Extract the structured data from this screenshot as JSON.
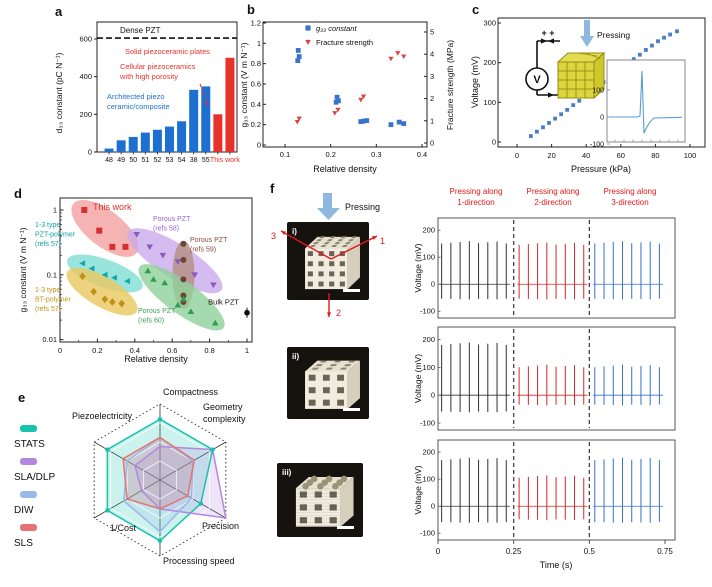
{
  "panels": {
    "a": "a",
    "b": "b",
    "c": "c",
    "d": "d",
    "e": "e",
    "f": "f"
  },
  "chart_data": [
    {
      "panel": "a",
      "type": "bar",
      "categories": [
        "48",
        "49",
        "50",
        "51",
        "52",
        "53",
        "54",
        "38",
        "55",
        "",
        ""
      ],
      "values": [
        18,
        62,
        80,
        103,
        118,
        135,
        163,
        330,
        348,
        200,
        500
      ],
      "bar_colors": [
        "#1e6fd2",
        "#1e6fd2",
        "#1e6fd2",
        "#1e6fd2",
        "#1e6fd2",
        "#1e6fd2",
        "#1e6fd2",
        "#1e6fd2",
        "#1e6fd2",
        "#e8312a",
        "#e8312a"
      ],
      "ylabel": "d₃₃ constant (pC N⁻¹)",
      "ylim": [
        0,
        690
      ],
      "yticks": [
        0,
        200,
        400,
        600
      ],
      "ref_line": {
        "value": 605,
        "label": "Dense PZT",
        "color": "#111111"
      },
      "group_label": {
        "text": "This work",
        "color": "#e8312a"
      },
      "annotations": [
        {
          "lines": [
            "Solid piezoceramic plates"
          ],
          "color": "#e8312a"
        },
        {
          "lines": [
            "Cellular piezoceramics",
            "with high porosity"
          ],
          "color": "#e8312a"
        },
        {
          "lines": [
            "Architected piezo",
            "ceramic/composite"
          ],
          "color": "#1e6fd2"
        }
      ]
    },
    {
      "panel": "b",
      "type": "scatter_dual",
      "xlabel": "Relative density",
      "xlim": [
        0.052,
        0.411
      ],
      "xticks": [
        0.1,
        0.2,
        0.3,
        0.4
      ],
      "left_axis": {
        "label": "g₃₃ constant (V m N⁻¹)",
        "ticks": [
          0,
          0.2,
          0.4,
          0.6,
          0.8,
          1,
          1.2
        ],
        "range": [
          0,
          1.2
        ]
      },
      "right_axis": {
        "label": "Fracture strength (MPa)",
        "ticks": [
          0,
          1,
          2,
          3,
          4,
          5
        ],
        "range": [
          0,
          5
        ]
      },
      "series": [
        {
          "name": "g₃₃ constant",
          "axis": "left",
          "marker": "square",
          "color": "#3a74c8",
          "points": [
            [
              0.128,
              0.83
            ],
            [
              0.131,
              0.87
            ],
            [
              0.129,
              0.93
            ],
            [
              0.212,
              0.42
            ],
            [
              0.217,
              0.435
            ],
            [
              0.214,
              0.47
            ],
            [
              0.266,
              0.23
            ],
            [
              0.272,
              0.235
            ],
            [
              0.279,
              0.24
            ],
            [
              0.332,
              0.2
            ],
            [
              0.35,
              0.225
            ],
            [
              0.36,
              0.21
            ]
          ]
        },
        {
          "name": "Fracture strength",
          "axis": "right",
          "marker": "triangle_down",
          "color": "#d84545",
          "points": [
            [
              0.127,
              0.95
            ],
            [
              0.131,
              1.1
            ],
            [
              0.209,
              1.35
            ],
            [
              0.216,
              1.5
            ],
            [
              0.266,
              1.95
            ],
            [
              0.272,
              2.1
            ],
            [
              0.332,
              3.8
            ],
            [
              0.347,
              4.05
            ],
            [
              0.36,
              3.9
            ]
          ]
        }
      ]
    },
    {
      "panel": "c",
      "type": "scatter_line",
      "xlabel": "Pressure (kPa)",
      "xticks": [
        0,
        20,
        40,
        60,
        80,
        100
      ],
      "ylabel": "Voltage (mV)",
      "yticks": [
        0,
        100,
        200,
        300
      ],
      "marker_color": "#4a7cc8",
      "points": [
        [
          8,
          15
        ],
        [
          11.5,
          26
        ],
        [
          15,
          37
        ],
        [
          18.5,
          48
        ],
        [
          22,
          59
        ],
        [
          25.5,
          70
        ],
        [
          29,
          81
        ],
        [
          32.5,
          93
        ],
        [
          36,
          104
        ],
        [
          39.5,
          116
        ],
        [
          43,
          127
        ],
        [
          46.5,
          139
        ],
        [
          50,
          151
        ],
        [
          53.5,
          162
        ],
        [
          57,
          174
        ],
        [
          60.5,
          186
        ],
        [
          64,
          197
        ],
        [
          67.5,
          209
        ],
        [
          71,
          220
        ],
        [
          74.5,
          232
        ],
        [
          78,
          243
        ],
        [
          81.5,
          254
        ],
        [
          85,
          263
        ],
        [
          88.5,
          271
        ],
        [
          92.5,
          279
        ]
      ],
      "circuit": {
        "voltmeter": "V",
        "plus": "+  +",
        "pressing": "Pressing"
      },
      "inset": {
        "yticks": [
          100,
          0,
          -100
        ],
        "peak_mV": 170,
        "undershoot_mV": -60,
        "line_color": "#5b9bd5"
      }
    },
    {
      "panel": "d",
      "type": "scatter_log",
      "xlabel": "Relative density",
      "xticks": [
        0,
        0.2,
        0.4,
        0.6,
        0.8,
        1
      ],
      "ylabel": "g₃₃ constant (V m N⁻¹)",
      "yticks": [
        0.01,
        0.1,
        1
      ],
      "groups": [
        {
          "name": "This work",
          "label_lines": [
            "This work"
          ],
          "label_color": "#e03030",
          "marker": "square",
          "marker_color": "#d43030",
          "ellipse_fill": "#f2a0a0",
          "points": [
            [
              0.13,
              1.0
            ],
            [
              0.21,
              0.48
            ],
            [
              0.28,
              0.27
            ],
            [
              0.35,
              0.27
            ]
          ],
          "ellipse": {
            "cx": 0.24,
            "cy": 0.52,
            "rmaj": 40,
            "rmin": 18,
            "angle": 38
          },
          "label_xy": [
            83,
            25
          ],
          "label_size": 9
        },
        {
          "name": "1-3 type PZT-polymer",
          "label_lines": [
            "1-3 type",
            "PZT-polymer",
            "(refs 57)"
          ],
          "label_color": "#12a0a0",
          "marker": "triangle_left",
          "marker_color": "#12a8a8",
          "ellipse_fill": "#7fded6",
          "points": [
            [
              0.12,
              0.15
            ],
            [
              0.17,
              0.125
            ],
            [
              0.24,
              0.1
            ],
            [
              0.29,
              0.09
            ],
            [
              0.36,
              0.08
            ]
          ],
          "ellipse": {
            "cx": 0.24,
            "cy": 0.105,
            "rmaj": 40,
            "rmin": 14,
            "angle": 20
          },
          "label_xy": [
            25,
            42
          ],
          "label_size": 7
        },
        {
          "name": "1-3 type BT-polymer",
          "label_lines": [
            "1-3 type",
            "BT-polymer",
            "(refs 57)"
          ],
          "label_color": "#bf9210",
          "marker": "diamond",
          "marker_color": "#c09018",
          "ellipse_fill": "#eac85e",
          "points": [
            [
              0.12,
              0.095
            ],
            [
              0.18,
              0.055
            ],
            [
              0.24,
              0.042
            ],
            [
              0.28,
              0.038
            ],
            [
              0.33,
              0.036
            ]
          ],
          "ellipse": {
            "cx": 0.225,
            "cy": 0.055,
            "rmaj": 40,
            "rmin": 15,
            "angle": 30
          },
          "label_xy": [
            25,
            107
          ],
          "label_size": 7
        },
        {
          "name": "Porous PZT (refs 58)",
          "label_lines": [
            "Porous PZT",
            "(refs 58)"
          ],
          "label_color": "#9a63cf",
          "marker": "triangle_down",
          "marker_color": "#8a5ac0",
          "ellipse_fill": "#c9aaec",
          "points": [
            [
              0.41,
              0.42
            ],
            [
              0.48,
              0.27
            ],
            [
              0.55,
              0.2
            ],
            [
              0.63,
              0.16
            ],
            [
              0.72,
              0.1
            ],
            [
              0.82,
              0.07
            ]
          ],
          "ellipse": {
            "cx": 0.615,
            "cy": 0.165,
            "rmaj": 55,
            "rmin": 17,
            "angle": 32
          },
          "label_xy": [
            143,
            36
          ],
          "label_size": 7
        },
        {
          "name": "Porous PZT (refs 59)",
          "label_lines": [
            "Porous PZT",
            "(refs 59)"
          ],
          "label_color": "#8a4a3a",
          "marker": "circle",
          "marker_color": "#6e4438",
          "ellipse_fill": "#b58e82",
          "points": [
            [
              0.66,
              0.3
            ],
            [
              0.66,
              0.17
            ],
            [
              0.66,
              0.085
            ],
            [
              0.66,
              0.048
            ],
            [
              0.66,
              0.038
            ]
          ],
          "ellipse": {
            "cx": 0.66,
            "cy": 0.1,
            "rmaj": 34,
            "rmin": 11,
            "angle": 90
          },
          "label_xy": [
            180,
            57
          ],
          "label_size": 7
        },
        {
          "name": "Porous PZT (refs 60)",
          "label_lines": [
            "Porous PZT",
            "(refs 60)"
          ],
          "label_color": "#3f9e56",
          "marker": "triangle_up",
          "marker_color": "#2e9e4e",
          "ellipse_fill": "#8fcf9a",
          "points": [
            [
              0.47,
              0.115
            ],
            [
              0.5,
              0.085
            ],
            [
              0.56,
              0.075
            ],
            [
              0.63,
              0.034
            ],
            [
              0.66,
              0.042
            ],
            [
              0.7,
              0.027
            ],
            [
              0.83,
              0.018
            ]
          ],
          "ellipse": {
            "cx": 0.65,
            "cy": 0.045,
            "rmaj": 52,
            "rmin": 16,
            "angle": 36
          },
          "label_xy": [
            128,
            128
          ],
          "label_size": 7
        }
      ],
      "bulk": {
        "label": "Bulk PZT",
        "point": [
          1.0,
          0.026
        ],
        "color": "#111111"
      }
    },
    {
      "panel": "e",
      "type": "radar",
      "axes": [
        "Compactness",
        "Geometry complexity",
        "Precision",
        "Processing speed",
        "1/Cost",
        "Piezoelectricity"
      ],
      "series": [
        {
          "name": "STATS",
          "color": "#17c3ad",
          "values": [
            0.8,
            0.8,
            0.62,
            0.8,
            0.8,
            0.8
          ]
        },
        {
          "name": "SLA/DLP",
          "color": "#b387e0",
          "values": [
            0.44,
            0.8,
            1.0,
            0.38,
            0.28,
            0.38
          ]
        },
        {
          "name": "DIW",
          "color": "#9ab8e8",
          "values": [
            0.56,
            0.5,
            0.48,
            0.68,
            0.55,
            0.5
          ]
        },
        {
          "name": "SLS",
          "color": "#e57373",
          "values": [
            0.56,
            0.52,
            0.42,
            0.38,
            0.5,
            0.56
          ]
        }
      ],
      "legend": [
        "STATS",
        "SLA/DLP",
        "DIW",
        "SLS"
      ]
    },
    {
      "panel": "f",
      "type": "spike_rows",
      "col_headers": [
        [
          "Pressing along",
          "1-direction"
        ],
        [
          "Pressing along",
          "2-direction"
        ],
        [
          "Pressing along",
          "3-direction"
        ]
      ],
      "header_color": "#e01818",
      "ylabel": "Voltage (mV)",
      "yticks": [
        -100,
        0,
        100,
        200
      ],
      "xlabel": "Time (s)",
      "xticks": [
        0,
        0.25,
        0.5,
        0.75
      ],
      "segment_colors": [
        "#303030",
        "#d02828",
        "#3672c8"
      ],
      "rows": [
        {
          "amps": [
            [
              155,
              -55
            ],
            [
              150,
              -55
            ],
            [
              155,
              -55
            ]
          ]
        },
        {
          "amps": [
            [
              185,
              -60
            ],
            [
              105,
              -35
            ],
            [
              105,
              -35
            ]
          ]
        },
        {
          "amps": [
            [
              175,
              -60
            ],
            [
              110,
              -50
            ],
            [
              175,
              -60
            ]
          ]
        }
      ],
      "photos": [
        {
          "label": "i)",
          "grid": 4,
          "style": "lattice"
        },
        {
          "label": "ii)",
          "grid": 3,
          "style": "lattice"
        },
        {
          "label": "iii)",
          "grid": 3,
          "style": "layered"
        }
      ],
      "pressing_label": "Pressing",
      "direction_labels": [
        "1",
        "2",
        "3"
      ]
    }
  ]
}
